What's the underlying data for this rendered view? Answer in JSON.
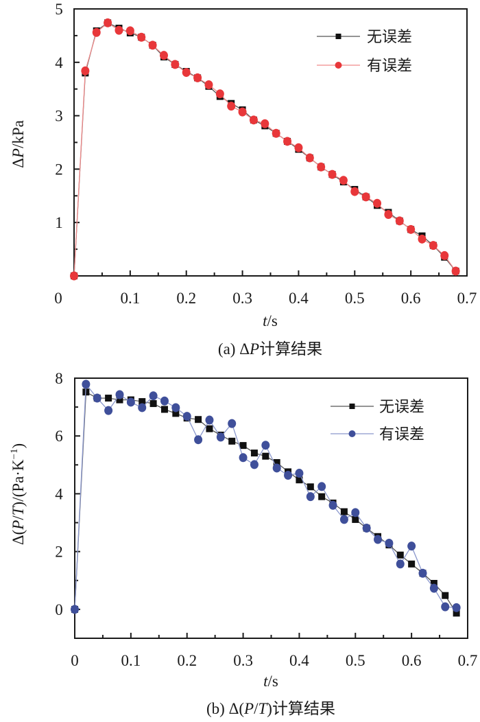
{
  "chart_data": [
    {
      "type": "line",
      "title": "",
      "caption": {
        "prefix": "(a) Δ",
        "var": "P",
        "suffix": "计算结果"
      },
      "xlabel": {
        "var": "t",
        "unit": "/s"
      },
      "ylabel": {
        "prefix": "Δ",
        "var": "P",
        "unit": "/kPa"
      },
      "xlim": [
        0,
        0.7
      ],
      "ylim": [
        0,
        5
      ],
      "x_ticks": [
        "0",
        "0.1",
        "0.2",
        "0.3",
        "0.4",
        "0.5",
        "0.6",
        "0.7"
      ],
      "x_tick_values": [
        0,
        0.1,
        0.2,
        0.3,
        0.4,
        0.5,
        0.6,
        0.7
      ],
      "y_ticks": [
        "1",
        "2",
        "3",
        "4",
        "5"
      ],
      "y_tick_values": [
        1,
        2,
        3,
        4,
        5
      ],
      "grid": false,
      "legend_position": "top-right",
      "x": [
        0,
        0.02,
        0.04,
        0.06,
        0.08,
        0.1,
        0.12,
        0.14,
        0.16,
        0.18,
        0.2,
        0.22,
        0.24,
        0.26,
        0.28,
        0.3,
        0.32,
        0.34,
        0.36,
        0.38,
        0.4,
        0.42,
        0.44,
        0.46,
        0.48,
        0.5,
        0.52,
        0.54,
        0.56,
        0.58,
        0.6,
        0.62,
        0.64,
        0.66,
        0.68
      ],
      "series": [
        {
          "name": "无误差",
          "marker": "square",
          "color": "#111111",
          "line_color": "#555555",
          "values": [
            0,
            3.8,
            4.59,
            4.74,
            4.64,
            4.55,
            4.47,
            4.32,
            4.1,
            3.96,
            3.83,
            3.71,
            3.55,
            3.36,
            3.23,
            3.11,
            2.92,
            2.81,
            2.67,
            2.52,
            2.37,
            2.21,
            2.04,
            1.9,
            1.76,
            1.62,
            1.48,
            1.32,
            1.19,
            1.03,
            0.87,
            0.75,
            0.57,
            0.35,
            0.09
          ]
        },
        {
          "name": "有误差",
          "marker": "circle",
          "color": "#e8373a",
          "line_color": "#f08a8a",
          "values": [
            0,
            3.84,
            4.56,
            4.74,
            4.6,
            4.59,
            4.47,
            4.32,
            4.13,
            3.96,
            3.81,
            3.71,
            3.58,
            3.41,
            3.18,
            3.07,
            2.92,
            2.85,
            2.67,
            2.52,
            2.4,
            2.21,
            2.04,
            1.9,
            1.79,
            1.58,
            1.48,
            1.36,
            1.15,
            1.03,
            0.87,
            0.69,
            0.57,
            0.38,
            0.09
          ]
        }
      ]
    },
    {
      "type": "line",
      "title": "",
      "caption": {
        "prefix": "(b) Δ(",
        "var1": "P",
        "sep": "/",
        "var2": "T",
        "suffix": ")计算结果"
      },
      "xlabel": {
        "var": "t",
        "unit": "/s"
      },
      "ylabel": {
        "prefix": "Δ(",
        "var1": "P",
        "sep": "/",
        "var2": "T",
        "mid": ")/(Pa·K",
        "sup": "−1",
        "end": ")"
      },
      "xlim": [
        0,
        0.7
      ],
      "ylim": [
        -1,
        8
      ],
      "x_ticks": [
        "0",
        "0.1",
        "0.2",
        "0.3",
        "0.4",
        "0.5",
        "0.6",
        "0.7"
      ],
      "x_tick_values": [
        0,
        0.1,
        0.2,
        0.3,
        0.4,
        0.5,
        0.6,
        0.7
      ],
      "y_ticks": [
        "0",
        "2",
        "4",
        "6",
        "8"
      ],
      "y_tick_values": [
        0,
        2,
        4,
        6,
        8
      ],
      "grid": false,
      "legend_position": "top-right",
      "x": [
        0,
        0.02,
        0.04,
        0.06,
        0.08,
        0.1,
        0.12,
        0.14,
        0.16,
        0.18,
        0.2,
        0.22,
        0.24,
        0.26,
        0.28,
        0.3,
        0.32,
        0.34,
        0.36,
        0.38,
        0.4,
        0.42,
        0.44,
        0.46,
        0.48,
        0.5,
        0.52,
        0.54,
        0.56,
        0.58,
        0.6,
        0.62,
        0.64,
        0.66,
        0.68
      ],
      "series": [
        {
          "name": "无误差",
          "marker": "square",
          "color": "#111111",
          "line_color": "#555555",
          "values": [
            0,
            7.52,
            7.31,
            7.31,
            7.25,
            7.25,
            7.19,
            7.12,
            6.92,
            6.78,
            6.62,
            6.57,
            6.25,
            6.03,
            5.82,
            5.67,
            5.41,
            5.3,
            5.08,
            4.76,
            4.48,
            4.24,
            3.9,
            3.68,
            3.38,
            3.11,
            2.81,
            2.52,
            2.23,
            1.88,
            1.57,
            1.25,
            0.9,
            0.48,
            -0.13
          ]
        },
        {
          "name": "有误差",
          "marker": "circle",
          "color": "#3f4f9a",
          "line_color": "#8a97cc",
          "values": [
            0,
            7.79,
            7.31,
            6.88,
            7.43,
            7.17,
            6.98,
            7.39,
            7.21,
            6.98,
            6.68,
            5.87,
            6.55,
            5.96,
            6.43,
            5.25,
            5.01,
            5.68,
            4.89,
            4.64,
            4.71,
            3.9,
            4.25,
            3.6,
            3.11,
            3.35,
            2.81,
            2.42,
            2.29,
            1.57,
            2.19,
            1.25,
            0.73,
            0.09,
            0.06
          ]
        }
      ]
    }
  ]
}
